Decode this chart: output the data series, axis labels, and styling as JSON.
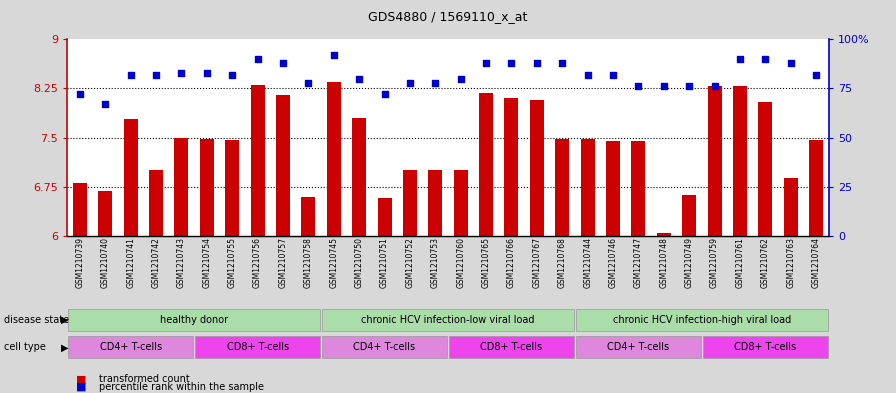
{
  "title": "GDS4880 / 1569110_x_at",
  "samples": [
    "GSM1210739",
    "GSM1210740",
    "GSM1210741",
    "GSM1210742",
    "GSM1210743",
    "GSM1210754",
    "GSM1210755",
    "GSM1210756",
    "GSM1210757",
    "GSM1210758",
    "GSM1210745",
    "GSM1210750",
    "GSM1210751",
    "GSM1210752",
    "GSM1210753",
    "GSM1210760",
    "GSM1210765",
    "GSM1210766",
    "GSM1210767",
    "GSM1210768",
    "GSM1210744",
    "GSM1210746",
    "GSM1210747",
    "GSM1210748",
    "GSM1210749",
    "GSM1210759",
    "GSM1210761",
    "GSM1210762",
    "GSM1210763",
    "GSM1210764"
  ],
  "bar_values": [
    6.8,
    6.68,
    7.78,
    7.0,
    7.5,
    7.48,
    7.47,
    8.3,
    8.15,
    6.6,
    8.35,
    7.8,
    6.58,
    7.0,
    7.0,
    7.0,
    8.18,
    8.1,
    8.08,
    7.48,
    7.48,
    7.45,
    7.45,
    6.05,
    6.62,
    8.28,
    8.28,
    8.05,
    6.88,
    7.47
  ],
  "percentile_values": [
    72,
    67,
    82,
    82,
    83,
    83,
    82,
    90,
    88,
    78,
    92,
    80,
    72,
    78,
    78,
    80,
    88,
    88,
    88,
    88,
    82,
    82,
    76,
    76,
    76,
    76,
    90,
    90,
    88,
    82
  ],
  "bar_color": "#cc0000",
  "dot_color": "#0000cc",
  "ylim_left": [
    6.0,
    9.0
  ],
  "ylim_right": [
    0,
    100
  ],
  "yticks_left": [
    6.0,
    6.75,
    7.5,
    8.25,
    9.0
  ],
  "yticks_right": [
    0,
    25,
    50,
    75,
    100
  ],
  "ytick_labels_left": [
    "6",
    "6.75",
    "7.5",
    "8.25",
    "9"
  ],
  "ytick_labels_right": [
    "0",
    "25",
    "50",
    "75",
    "100%"
  ],
  "hlines": [
    6.75,
    7.5,
    8.25
  ],
  "disease_state_label": "disease state",
  "cell_type_label": "cell type",
  "legend_bar_label": "transformed count",
  "legend_dot_label": "percentile rank within the sample",
  "bg_color": "#d8d8d8",
  "plot_bg_color": "#ffffff",
  "green_color": "#aaddaa",
  "cd4_color": "#dd88dd",
  "cd8_color": "#ee44ee"
}
